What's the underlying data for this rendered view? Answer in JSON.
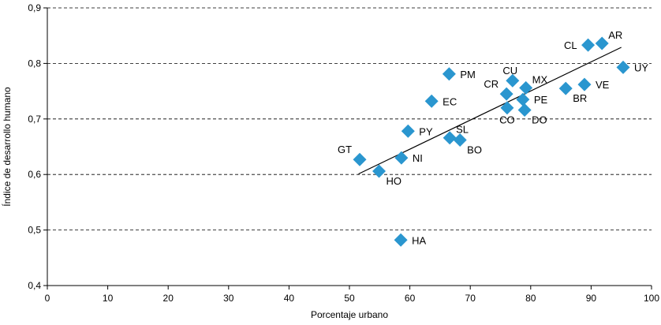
{
  "chart_data": {
    "type": "scatter",
    "xlabel": "Porcentaje urbano",
    "ylabel": "Índice de desarrollo humano",
    "xlim": [
      0,
      100
    ],
    "ylim": [
      0.4,
      0.9
    ],
    "x_ticks": [
      0,
      10,
      20,
      30,
      40,
      50,
      60,
      70,
      80,
      90,
      100
    ],
    "x_tick_labels": [
      "0",
      "10",
      "20",
      "30",
      "40",
      "50",
      "60",
      "70",
      "80",
      "90",
      "100"
    ],
    "y_ticks": [
      0.4,
      0.5,
      0.6,
      0.7,
      0.8,
      0.9
    ],
    "y_tick_labels": [
      "0,4",
      "0,5",
      "0,6",
      "0,7",
      "0,8",
      "0,9"
    ],
    "grid": "horizontal-dashed",
    "marker_color": "#2a96cf",
    "points": [
      {
        "label": "AR",
        "x": 91.8,
        "y": 0.836,
        "label_pos": "above-right"
      },
      {
        "label": "CL",
        "x": 89.5,
        "y": 0.833,
        "label_pos": "left"
      },
      {
        "label": "UY",
        "x": 95.3,
        "y": 0.793,
        "label_pos": "right"
      },
      {
        "label": "VE",
        "x": 88.9,
        "y": 0.762,
        "label_pos": "right"
      },
      {
        "label": "BR",
        "x": 85.8,
        "y": 0.755,
        "label_pos": "below-right"
      },
      {
        "label": "PM",
        "x": 66.5,
        "y": 0.781,
        "label_pos": "right"
      },
      {
        "label": "CU",
        "x": 77.0,
        "y": 0.769,
        "label_pos": "above"
      },
      {
        "label": "MX",
        "x": 79.2,
        "y": 0.756,
        "label_pos": "above-right"
      },
      {
        "label": "CR",
        "x": 76.0,
        "y": 0.745,
        "label_pos": "above-left"
      },
      {
        "label": "PE",
        "x": 78.7,
        "y": 0.735,
        "label_pos": "right"
      },
      {
        "label": "EC",
        "x": 63.6,
        "y": 0.732,
        "label_pos": "right"
      },
      {
        "label": "CO",
        "x": 76.1,
        "y": 0.72,
        "label_pos": "below"
      },
      {
        "label": "DO",
        "x": 79.0,
        "y": 0.716,
        "label_pos": "below-right"
      },
      {
        "label": "PY",
        "x": 59.7,
        "y": 0.678,
        "label_pos": "right"
      },
      {
        "label": "SL",
        "x": 66.6,
        "y": 0.666,
        "label_pos": "above-right"
      },
      {
        "label": "BO",
        "x": 68.3,
        "y": 0.662,
        "label_pos": "below-right"
      },
      {
        "label": "GT",
        "x": 51.7,
        "y": 0.627,
        "label_pos": "above-left"
      },
      {
        "label": "NI",
        "x": 58.6,
        "y": 0.63,
        "label_pos": "right"
      },
      {
        "label": "HO",
        "x": 54.9,
        "y": 0.606,
        "label_pos": "below-right"
      },
      {
        "label": "HA",
        "x": 58.5,
        "y": 0.482,
        "label_pos": "right"
      }
    ],
    "trendline": {
      "x": [
        51.5,
        95.0
      ],
      "y": [
        0.601,
        0.829
      ]
    }
  }
}
